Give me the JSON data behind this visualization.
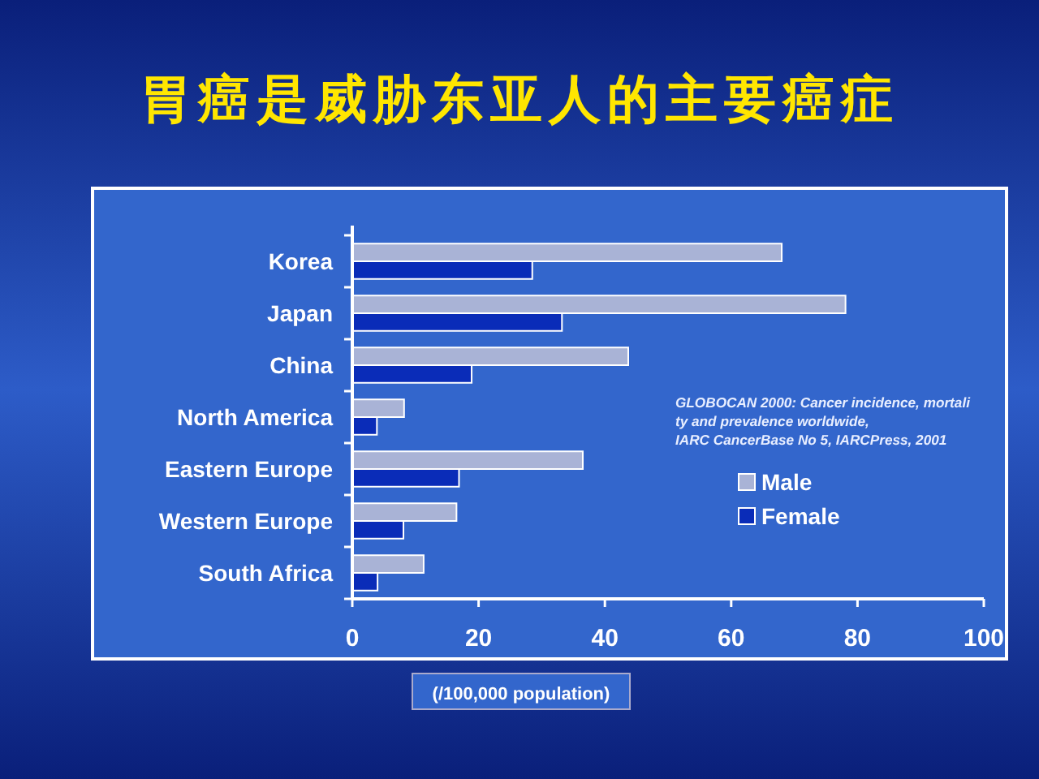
{
  "chart_data": {
    "type": "bar",
    "orientation": "horizontal",
    "title": "胃癌是威胁东亚人的主要癌症",
    "xlabel": "(/100,000 population)",
    "categories": [
      "Korea",
      "Japan",
      "China",
      "North America",
      "Eastern Europe",
      "Western Europe",
      "South Africa"
    ],
    "series": [
      {
        "name": "Male",
        "color": "#a9b3d6",
        "values": [
          68.0,
          78.1,
          43.7,
          8.2,
          36.5,
          16.5,
          11.3
        ]
      },
      {
        "name": "Female",
        "color": "#0a2cb8",
        "values": [
          28.5,
          33.2,
          18.9,
          3.9,
          16.9,
          8.1,
          4.0
        ]
      }
    ],
    "xlim": [
      0,
      100
    ],
    "xticks": [
      0,
      20,
      40,
      60,
      80,
      100
    ],
    "legend": "right",
    "annotations": [
      "GLOBOCAN 2000: Cancer incidence, mortali",
      "ty and prevalence worldwide,",
      "IARC CancerBase No 5, IARCPress, 2001"
    ]
  }
}
